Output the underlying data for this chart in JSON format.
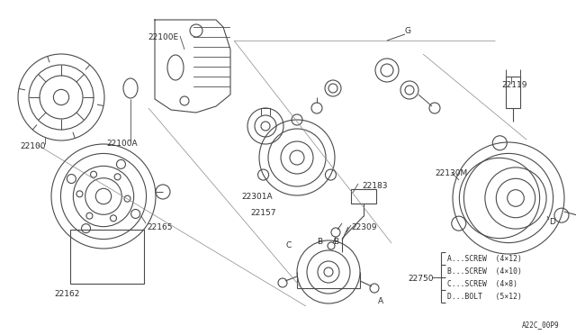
{
  "bg_color": "#ffffff",
  "line_color": "#4a4a4a",
  "text_color": "#2a2a2a",
  "fig_width": 6.4,
  "fig_height": 3.72,
  "dpi": 100,
  "diagram_code": "A22C_00P9",
  "legend_lines": [
    "A...SCREW  (4×12)",
    "B...SCREW  (4×10)",
    "C...SCREW  (4×8)",
    "D...BOLT   (5×12)"
  ]
}
